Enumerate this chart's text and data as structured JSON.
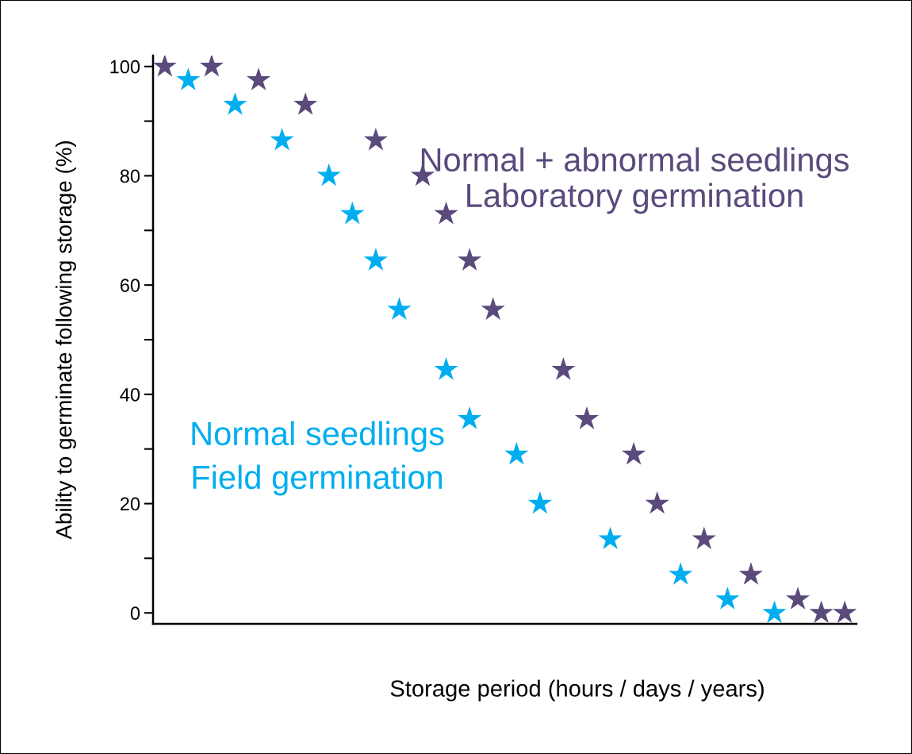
{
  "chart_data": {
    "type": "scatter",
    "xlabel": "Storage period (hours / days / years)",
    "ylabel": "Ability to germinate following storage (%)",
    "categories": [
      null,
      null,
      null,
      null,
      null,
      null,
      null,
      null,
      null,
      null,
      null,
      null,
      null,
      null,
      null,
      null,
      null,
      null,
      null,
      null,
      null,
      null,
      null,
      null,
      null,
      null,
      null,
      null,
      null,
      null
    ],
    "series": [
      {
        "name": "Laboratory germination",
        "color": "#5b4a7c",
        "values": [
          100,
          null,
          100,
          null,
          97.5,
          null,
          93,
          null,
          null,
          86.5,
          null,
          80,
          73,
          64.5,
          55.5,
          null,
          null,
          44.5,
          35.5,
          null,
          29,
          20,
          null,
          13.5,
          null,
          7,
          null,
          2.5,
          0,
          0
        ]
      },
      {
        "name": "Field germination",
        "color": "#00aeef",
        "values": [
          null,
          97.5,
          null,
          93,
          null,
          86.5,
          null,
          80,
          73,
          64.5,
          55.5,
          null,
          44.5,
          35.5,
          null,
          29,
          20,
          null,
          null,
          13.5,
          null,
          null,
          7,
          null,
          2.5,
          null,
          0,
          null,
          null,
          null
        ]
      }
    ],
    "annotations": [
      "Normal + abnormal seedlings",
      "Normal seedlings"
    ],
    "ylim": [
      -2,
      102
    ],
    "yticks": [
      0,
      {
        "value": 10,
        "label": null
      },
      20,
      {
        "value": 30,
        "label": null
      },
      40,
      {
        "value": 50,
        "label": null
      },
      60,
      {
        "value": 70,
        "label": null
      },
      80,
      {
        "value": 90,
        "label": null
      },
      100
    ],
    "marker": "star",
    "grid": false,
    "legend": false
  }
}
